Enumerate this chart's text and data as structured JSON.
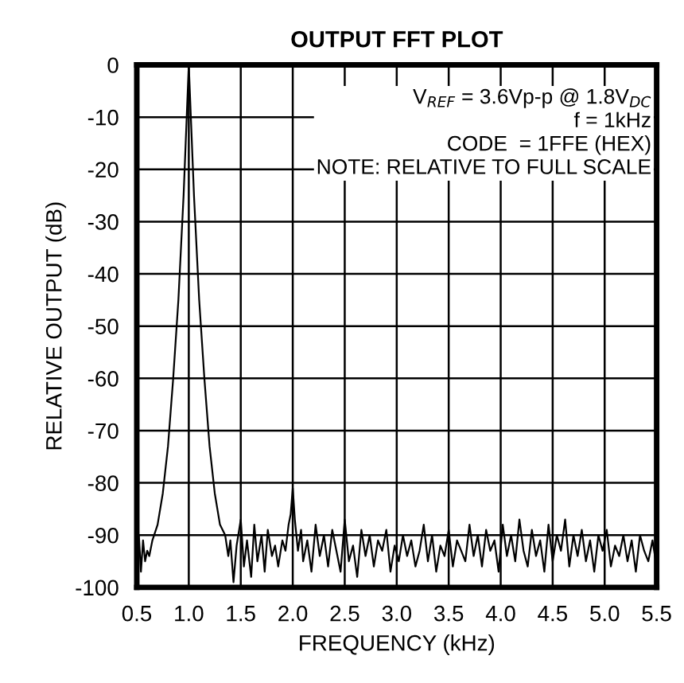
{
  "chart_data": {
    "type": "line",
    "title": "OUTPUT FFT PLOT",
    "xlabel": "FREQUENCY (kHz)",
    "ylabel": "RELATIVE OUTPUT (dB)",
    "annotations": [
      "V$_{REF}$ = 3.6Vp-p @ 1.8V$_{DC}$\nf = 1kHz\nCODE  = 1FFE (HEX)\nNOTE: RELATIVE TO FULL SCALE"
    ],
    "series": [
      {
        "color": "#000000",
        "x": [
          0.5,
          0.52,
          0.54,
          0.56,
          0.58,
          0.6,
          0.62,
          0.65,
          0.7,
          0.75,
          0.8,
          0.85,
          0.9,
          0.95,
          0.98,
          1.0,
          1.02,
          1.05,
          1.1,
          1.15,
          1.2,
          1.25,
          1.3,
          1.35,
          1.38,
          1.4,
          1.43,
          1.46,
          1.5,
          1.53,
          1.56,
          1.6,
          1.63,
          1.66,
          1.7,
          1.73,
          1.76,
          1.8,
          1.83,
          1.86,
          1.9,
          1.93,
          1.96,
          1.98,
          2.0,
          2.02,
          2.05,
          2.08,
          2.1,
          2.14,
          2.18,
          2.22,
          2.26,
          2.3,
          2.34,
          2.38,
          2.42,
          2.46,
          2.5,
          2.54,
          2.58,
          2.62,
          2.66,
          2.7,
          2.74,
          2.78,
          2.82,
          2.86,
          2.9,
          2.94,
          2.98,
          3.02,
          3.06,
          3.1,
          3.14,
          3.18,
          3.22,
          3.26,
          3.3,
          3.34,
          3.38,
          3.42,
          3.46,
          3.5,
          3.54,
          3.58,
          3.62,
          3.66,
          3.7,
          3.74,
          3.78,
          3.82,
          3.86,
          3.9,
          3.94,
          3.98,
          4.02,
          4.06,
          4.1,
          4.14,
          4.18,
          4.22,
          4.26,
          4.3,
          4.34,
          4.38,
          4.42,
          4.46,
          4.5,
          4.54,
          4.58,
          4.62,
          4.66,
          4.7,
          4.74,
          4.78,
          4.82,
          4.86,
          4.9,
          4.94,
          4.98,
          5.02,
          5.06,
          5.1,
          5.14,
          5.18,
          5.22,
          5.26,
          5.3,
          5.34,
          5.38,
          5.42,
          5.46,
          5.5
        ],
        "values": [
          -92,
          -90,
          -97,
          -91,
          -95,
          -93,
          -94,
          -91,
          -88,
          -82,
          -73,
          -60,
          -45,
          -25,
          -10,
          0,
          -10,
          -25,
          -45,
          -60,
          -73,
          -82,
          -88,
          -90,
          -94,
          -91,
          -99,
          -92,
          -87,
          -96,
          -91,
          -98,
          -88,
          -95,
          -90,
          -97,
          -89,
          -94,
          -92,
          -96,
          -91,
          -93,
          -88,
          -86,
          -81,
          -87,
          -93,
          -89,
          -95,
          -91,
          -97,
          -88,
          -94,
          -90,
          -96,
          -89,
          -93,
          -97,
          -87,
          -95,
          -92,
          -98,
          -89,
          -94,
          -90,
          -96,
          -91,
          -93,
          -89,
          -97,
          -92,
          -95,
          -90,
          -94,
          -91,
          -96,
          -93,
          -88,
          -95,
          -90,
          -97,
          -92,
          -94,
          -89,
          -96,
          -91,
          -93,
          -95,
          -88,
          -94,
          -90,
          -96,
          -89,
          -93,
          -91,
          -97,
          -88,
          -94,
          -90,
          -95,
          -87,
          -93,
          -96,
          -89,
          -94,
          -91,
          -97,
          -88,
          -95,
          -90,
          -93,
          -87,
          -96,
          -90,
          -94,
          -89,
          -95,
          -91,
          -97,
          -90,
          -93,
          -89,
          -96,
          -92,
          -94,
          -90,
          -95,
          -91,
          -97,
          -90,
          -93,
          -95,
          -91,
          -96
        ]
      }
    ],
    "xlim": [
      0.5,
      5.5
    ],
    "xticks": [
      {
        "value": 0.5,
        "label": "0.5"
      },
      {
        "value": 1.0,
        "label": "1.0"
      },
      {
        "value": 1.5,
        "label": "1.5"
      },
      {
        "value": 2.0,
        "label": "2.0"
      },
      {
        "value": 2.5,
        "label": "2.5"
      },
      {
        "value": 3.0,
        "label": "3.0"
      },
      {
        "value": 3.5,
        "label": "3.5"
      },
      {
        "value": 4.0,
        "label": "4.0"
      },
      {
        "value": 4.5,
        "label": "4.5"
      },
      {
        "value": 5.0,
        "label": "5.0"
      },
      {
        "value": 5.5,
        "label": "5.5"
      }
    ],
    "ylim": [
      -100,
      0
    ],
    "yticks": [
      -100,
      -90,
      -80,
      -70,
      -60,
      -50,
      -40,
      -30,
      -20,
      -10,
      0
    ],
    "grid": true,
    "line_style": "solid"
  }
}
